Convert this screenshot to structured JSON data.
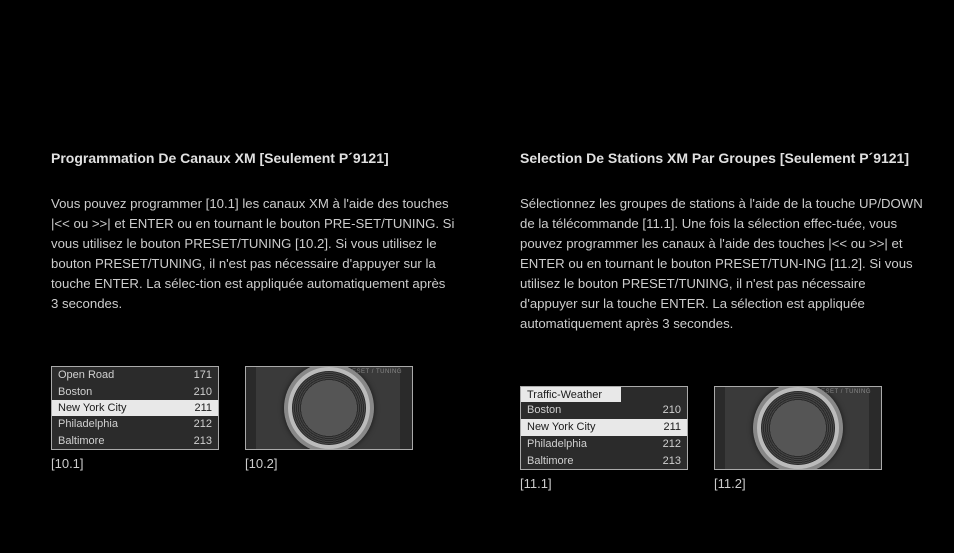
{
  "left": {
    "heading": "Programmation De Canaux XM [Seulement P´9121]",
    "body": "Vous pouvez programmer [10.1] les canaux XM à l'aide des touches |<< ou >>| et ENTER ou en tournant le bouton PRE-SET/TUNING. Si vous utilisez le bouton PRESET/TUNING [10.2]. Si vous utilisez le bouton PRESET/TUNING, il n'est pas nécessaire d'appuyer sur la touche ENTER. La sélec-tion est appliquée automatiquement après 3 secondes.",
    "fig1": {
      "label": "[10.1]",
      "rows": [
        {
          "name": "Open Road",
          "num": "171",
          "sel": false
        },
        {
          "name": "Boston",
          "num": "210",
          "sel": false
        },
        {
          "name": "New York City",
          "num": "211",
          "sel": true
        },
        {
          "name": "Philadelphia",
          "num": "212",
          "sel": false
        },
        {
          "name": "Baltimore",
          "num": "213",
          "sel": false
        }
      ]
    },
    "fig2": {
      "label": "[10.2]",
      "dial_label": "PRESET / TUNING"
    }
  },
  "right": {
    "heading": "Selection De Stations XM Par Groupes [Seulement P´9121]",
    "body": "Sélectionnez les groupes de stations à l'aide de la touche UP/DOWN de la télécommande [11.1]. Une fois la sélection effec-tuée, vous pouvez programmer les canaux à l'aide des touches |<< ou >>| et ENTER ou en tournant le bouton PRESET/TUN-ING [11.2]. Si vous utilisez le bouton PRESET/TUNING, il n'est pas nécessaire d'appuyer sur la touche ENTER. La sélection est appliquée automatiquement après 3 secondes.",
    "fig1": {
      "label": "[11.1]",
      "header": "Traffic-Weather",
      "rows": [
        {
          "name": "Boston",
          "num": "210",
          "sel": false
        },
        {
          "name": "New York City",
          "num": "211",
          "sel": true
        },
        {
          "name": "Philadelphia",
          "num": "212",
          "sel": false
        },
        {
          "name": "Baltimore",
          "num": "213",
          "sel": false
        }
      ]
    },
    "fig2": {
      "label": "[11.2]",
      "dial_label": "PRESET / TUNING"
    }
  }
}
